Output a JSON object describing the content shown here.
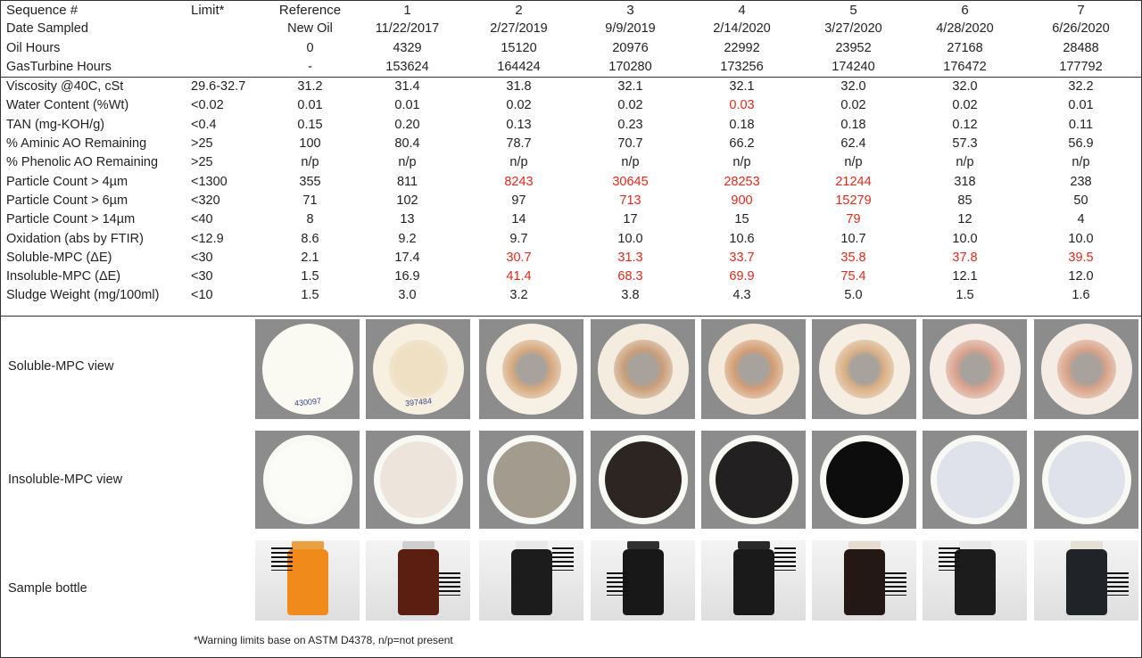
{
  "header": {
    "sequence_label": "Sequence #",
    "limit_label": "Limit*",
    "reference_label": "Reference",
    "sequences": [
      "1",
      "2",
      "3",
      "4",
      "5",
      "6",
      "7"
    ]
  },
  "info_rows": [
    {
      "label": "Date Sampled",
      "reference": "New Oil",
      "values": [
        "11/22/2017",
        "2/27/2019",
        "9/9/2019",
        "2/14/2020",
        "3/27/2020",
        "4/28/2020",
        "6/26/2020"
      ]
    },
    {
      "label": "Oil Hours",
      "reference": "0",
      "values": [
        "4329",
        "15120",
        "20976",
        "22992",
        "23952",
        "27168",
        "28488"
      ]
    },
    {
      "label": "GasTurbine Hours",
      "reference": "-",
      "values": [
        "153624",
        "164424",
        "170280",
        "173256",
        "174240",
        "176472",
        "177792"
      ]
    }
  ],
  "measure_rows": [
    {
      "label": "Viscosity @40C, cSt",
      "limit": "29.6-32.7",
      "reference": "31.2",
      "values": [
        "31.4",
        "31.8",
        "32.1",
        "32.1",
        "32.0",
        "32.0",
        "32.2"
      ],
      "warn": [
        false,
        false,
        false,
        false,
        false,
        false,
        false
      ]
    },
    {
      "label": "Water Content (%Wt)",
      "limit": "<0.02",
      "reference": "0.01",
      "values": [
        "0.01",
        "0.02",
        "0.02",
        "0.03",
        "0.02",
        "0.02",
        "0.01"
      ],
      "warn": [
        false,
        false,
        false,
        true,
        false,
        false,
        false
      ]
    },
    {
      "label": "TAN (mg-KOH/g)",
      "limit": "<0.4",
      "reference": "0.15",
      "values": [
        "0.20",
        "0.13",
        "0.23",
        "0.18",
        "0.18",
        "0.12",
        "0.11"
      ],
      "warn": [
        false,
        false,
        false,
        false,
        false,
        false,
        false
      ]
    },
    {
      "label": "% Aminic AO Remaining",
      "limit": ">25",
      "reference": "100",
      "values": [
        "80.4",
        "78.7",
        "70.7",
        "66.2",
        "62.4",
        "57.3",
        "56.9"
      ],
      "warn": [
        false,
        false,
        false,
        false,
        false,
        false,
        false
      ]
    },
    {
      "label": "% Phenolic AO Remaining",
      "limit": ">25",
      "reference": "n/p",
      "values": [
        "n/p",
        "n/p",
        "n/p",
        "n/p",
        "n/p",
        "n/p",
        "n/p"
      ],
      "warn": [
        false,
        false,
        false,
        false,
        false,
        false,
        false
      ]
    },
    {
      "label": "Particle Count > 4µm",
      "limit": "<1300",
      "reference": "355",
      "values": [
        "811",
        "8243",
        "30645",
        "28253",
        "21244",
        "318",
        "238"
      ],
      "warn": [
        false,
        true,
        true,
        true,
        true,
        false,
        false
      ]
    },
    {
      "label": "Particle Count > 6µm",
      "limit": "<320",
      "reference": "71",
      "values": [
        "102",
        "97",
        "713",
        "900",
        "15279",
        "85",
        "50"
      ],
      "warn": [
        false,
        false,
        true,
        true,
        true,
        false,
        false
      ]
    },
    {
      "label": "Particle Count > 14µm",
      "limit": "<40",
      "reference": "8",
      "values": [
        "13",
        "14",
        "17",
        "15",
        "79",
        "12",
        "4"
      ],
      "warn": [
        false,
        false,
        false,
        false,
        true,
        false,
        false
      ]
    },
    {
      "label": "Oxidation (abs by FTIR)",
      "limit": "<12.9",
      "reference": "8.6",
      "values": [
        "9.2",
        "9.7",
        "10.0",
        "10.6",
        "10.7",
        "10.0",
        "10.0"
      ],
      "warn": [
        false,
        false,
        false,
        false,
        false,
        false,
        false
      ]
    },
    {
      "label": "Soluble-MPC (ΔE)",
      "limit": "<30",
      "reference": "2.1",
      "values": [
        "17.4",
        "30.7",
        "31.3",
        "33.7",
        "35.8",
        "37.8",
        "39.5"
      ],
      "warn": [
        false,
        true,
        true,
        true,
        true,
        true,
        true
      ]
    },
    {
      "label": "Insoluble-MPC (ΔE)",
      "limit": "<30",
      "reference": "1.5",
      "values": [
        "16.9",
        "41.4",
        "68.3",
        "69.9",
        "75.4",
        "12.1",
        "12.0"
      ],
      "warn": [
        false,
        true,
        true,
        true,
        true,
        false,
        false
      ]
    },
    {
      "label": "Sludge Weight (mg/100ml)",
      "limit": "<10",
      "reference": "1.5",
      "values": [
        "3.0",
        "3.2",
        "3.8",
        "4.3",
        "5.0",
        "1.5",
        "1.6"
      ],
      "warn": [
        false,
        false,
        false,
        false,
        false,
        false,
        false
      ]
    }
  ],
  "image_rows": {
    "soluble_label": "Soluble-MPC view",
    "insoluble_label": "Insoluble-MPC view",
    "bottle_label": "Sample bottle"
  },
  "soluble_patches": [
    {
      "disc": "#fbfaf2",
      "spot": "#fbfaf2",
      "code": "430097"
    },
    {
      "disc": "#f7efe0",
      "spot": "#efe0c4",
      "code": "397484"
    },
    {
      "disc": "#f7f0e5",
      "spot": "#d4a77d",
      "code": ""
    },
    {
      "disc": "#f4ecdf",
      "spot": "#c89d78",
      "code": ""
    },
    {
      "disc": "#f4ebdc",
      "spot": "#d29c74",
      "code": ""
    },
    {
      "disc": "#f6eee2",
      "spot": "#d8ae84",
      "code": ""
    },
    {
      "disc": "#f6eee6",
      "spot": "#d8a08c",
      "code": ""
    },
    {
      "disc": "#f5ede5",
      "spot": "#d7a086",
      "code": ""
    }
  ],
  "insoluble_patches": [
    {
      "disc": "#fbfbf7"
    },
    {
      "disc": "#ede4dc"
    },
    {
      "disc": "#a49b8f"
    },
    {
      "disc": "#2d2522"
    },
    {
      "disc": "#222020"
    },
    {
      "disc": "#0d0d0d"
    },
    {
      "disc": "#dfe2ea"
    },
    {
      "disc": "#dfe2ea"
    }
  ],
  "bottles": [
    {
      "fill": "#f08a1a",
      "cap": "#e8a040"
    },
    {
      "fill": "#5a1f10",
      "cap": "#cfcfcf"
    },
    {
      "fill": "#1c1c1c",
      "cap": "#e8e8e8"
    },
    {
      "fill": "#181818",
      "cap": "#303030"
    },
    {
      "fill": "#1a1a1a",
      "cap": "#2a2a2a"
    },
    {
      "fill": "#241814",
      "cap": "#e6ddd0"
    },
    {
      "fill": "#1c1c1c",
      "cap": "#e8e8e8"
    },
    {
      "fill": "#202428",
      "cap": "#e4e0d6"
    }
  ],
  "footnote": "*Warning limits base on ASTM D4378, n/p=not present",
  "colors": {
    "warning": "#e02a1e",
    "border": "#333333"
  }
}
